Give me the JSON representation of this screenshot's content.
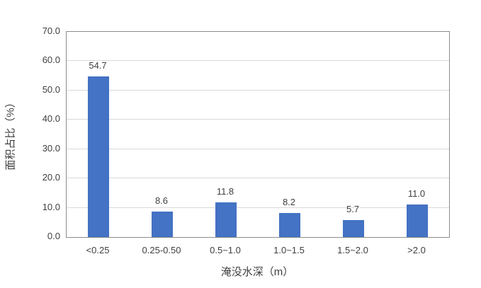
{
  "chart_data": {
    "type": "bar",
    "title": "",
    "xlabel": "淹没水深（m）",
    "ylabel": "面积占比（%）",
    "categories": [
      "<0.25",
      "0.25-0.50",
      "0.5~1.0",
      "1.0~1.5",
      "1.5~2.0",
      ">2.0"
    ],
    "values": [
      54.7,
      8.6,
      11.8,
      8.2,
      5.7,
      11.0
    ],
    "data_labels": [
      "54.7",
      "8.6",
      "11.8",
      "8.2",
      "5.7",
      "11.0"
    ],
    "ylim": [
      0,
      70
    ],
    "ytick_step": 10,
    "ytick_labels": [
      "0.0",
      "10.0",
      "20.0",
      "30.0",
      "40.0",
      "50.0",
      "60.0",
      "70.0"
    ],
    "grid": "horizontal",
    "legend": "none",
    "colors": {
      "bar": "#4472c4",
      "gridline": "#d9d9d9",
      "plot_border": "#8c8c8c",
      "text": "#3f3f3f",
      "background": "#ffffff"
    }
  }
}
